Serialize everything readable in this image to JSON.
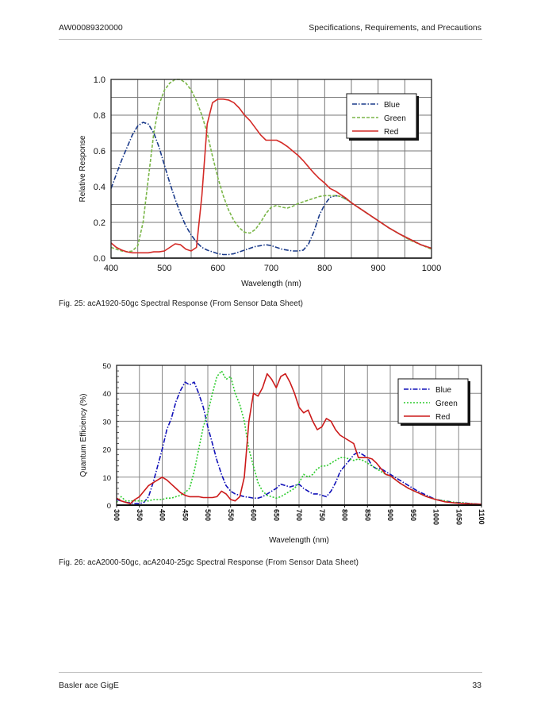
{
  "header": {
    "doc_id": "AW00089320000",
    "section": "Specifications, Requirements, and Precautions"
  },
  "footer": {
    "product": "Basler ace GigE",
    "page_number": "33"
  },
  "figures": [
    {
      "caption": "Fig. 25: acA1920-50gc Spectral Response (From Sensor Data Sheet)"
    },
    {
      "caption": "Fig. 26: acA2000-50gc, acA2040-25gc Spectral Response (From Sensor Data Sheet)"
    }
  ],
  "chart_data": [
    {
      "type": "line",
      "title": "",
      "xlabel": "Wavelength (nm)",
      "ylabel": "Relative Response",
      "xlim": [
        400,
        1000
      ],
      "ylim": [
        0,
        1.0
      ],
      "xticks": [
        400,
        500,
        600,
        700,
        800,
        900,
        1000
      ],
      "xtick_labels": [
        "400",
        "500",
        "600",
        "700",
        "800",
        "900",
        "1000"
      ],
      "yticks": [
        0,
        0.2,
        0.4,
        0.6,
        0.8,
        1.0
      ],
      "ytick_labels": [
        "0.0",
        "0.2",
        "0.4",
        "0.6",
        "0.8",
        "1.0"
      ],
      "grid": true,
      "legend": "top-right",
      "series": [
        {
          "name": "Blue",
          "color": "#1a3a8a",
          "dash": "dashdot",
          "x": [
            400,
            410,
            420,
            430,
            440,
            450,
            460,
            470,
            480,
            490,
            500,
            510,
            520,
            530,
            540,
            550,
            560,
            570,
            580,
            590,
            600,
            610,
            620,
            630,
            640,
            650,
            660,
            670,
            680,
            690,
            700,
            710,
            720,
            730,
            740,
            750,
            760,
            770,
            780,
            790,
            800,
            810,
            820,
            830,
            840,
            850,
            860,
            870,
            880,
            890,
            900,
            920,
            940,
            960,
            980,
            1000
          ],
          "y": [
            0.39,
            0.47,
            0.55,
            0.62,
            0.69,
            0.74,
            0.76,
            0.75,
            0.7,
            0.62,
            0.52,
            0.42,
            0.33,
            0.25,
            0.18,
            0.13,
            0.09,
            0.06,
            0.045,
            0.035,
            0.025,
            0.02,
            0.02,
            0.025,
            0.035,
            0.045,
            0.055,
            0.065,
            0.07,
            0.075,
            0.07,
            0.06,
            0.05,
            0.045,
            0.04,
            0.04,
            0.045,
            0.08,
            0.15,
            0.24,
            0.3,
            0.34,
            0.35,
            0.345,
            0.33,
            0.31,
            0.29,
            0.27,
            0.25,
            0.23,
            0.21,
            0.17,
            0.135,
            0.105,
            0.075,
            0.055
          ]
        },
        {
          "name": "Green",
          "color": "#7ab648",
          "dash": "dashed",
          "x": [
            400,
            410,
            420,
            430,
            440,
            450,
            460,
            470,
            480,
            490,
            500,
            510,
            520,
            530,
            540,
            550,
            560,
            570,
            580,
            590,
            600,
            610,
            620,
            630,
            640,
            650,
            660,
            670,
            680,
            690,
            700,
            710,
            720,
            730,
            740,
            750,
            760,
            770,
            780,
            790,
            800,
            810,
            820,
            830,
            840,
            850,
            860,
            870,
            880,
            890,
            900,
            920,
            940,
            960,
            980,
            1000
          ],
          "y": [
            0.06,
            0.05,
            0.04,
            0.035,
            0.04,
            0.07,
            0.2,
            0.45,
            0.7,
            0.86,
            0.94,
            0.98,
            1.0,
            1.0,
            0.98,
            0.94,
            0.88,
            0.8,
            0.7,
            0.57,
            0.45,
            0.35,
            0.27,
            0.21,
            0.17,
            0.145,
            0.14,
            0.16,
            0.2,
            0.25,
            0.285,
            0.295,
            0.285,
            0.28,
            0.29,
            0.305,
            0.315,
            0.325,
            0.335,
            0.345,
            0.35,
            0.35,
            0.35,
            0.345,
            0.33,
            0.31,
            0.29,
            0.27,
            0.25,
            0.23,
            0.21,
            0.17,
            0.135,
            0.1,
            0.075,
            0.05
          ]
        },
        {
          "name": "Red",
          "color": "#d42a26",
          "dash": "solid",
          "x": [
            400,
            410,
            420,
            430,
            440,
            450,
            460,
            470,
            480,
            490,
            500,
            510,
            520,
            530,
            540,
            550,
            560,
            570,
            580,
            590,
            600,
            610,
            620,
            630,
            640,
            650,
            660,
            670,
            680,
            690,
            700,
            710,
            720,
            730,
            740,
            750,
            760,
            770,
            780,
            790,
            800,
            810,
            820,
            830,
            840,
            850,
            860,
            870,
            880,
            890,
            900,
            920,
            940,
            960,
            980,
            1000
          ],
          "y": [
            0.085,
            0.06,
            0.045,
            0.035,
            0.03,
            0.03,
            0.03,
            0.03,
            0.035,
            0.035,
            0.04,
            0.06,
            0.08,
            0.075,
            0.05,
            0.04,
            0.06,
            0.35,
            0.75,
            0.87,
            0.89,
            0.89,
            0.885,
            0.87,
            0.84,
            0.8,
            0.77,
            0.73,
            0.69,
            0.66,
            0.66,
            0.66,
            0.645,
            0.625,
            0.6,
            0.575,
            0.545,
            0.51,
            0.475,
            0.445,
            0.42,
            0.39,
            0.375,
            0.355,
            0.335,
            0.31,
            0.29,
            0.27,
            0.25,
            0.23,
            0.21,
            0.17,
            0.135,
            0.105,
            0.075,
            0.055
          ]
        }
      ]
    },
    {
      "type": "line",
      "title": "",
      "xlabel": "Wavelength (nm)",
      "ylabel": "Quantum Efficiency (%)",
      "xlim": [
        300,
        1100
      ],
      "ylim": [
        0,
        50
      ],
      "xticks": [
        300,
        350,
        400,
        450,
        500,
        550,
        600,
        650,
        700,
        750,
        800,
        850,
        900,
        950,
        1000,
        1050,
        1100
      ],
      "xtick_labels": [
        "300",
        "350",
        "400",
        "450",
        "500",
        "550",
        "600",
        "650",
        "700",
        "750",
        "800",
        "850",
        "900",
        "950",
        "1000",
        "1050",
        "1100"
      ],
      "yticks": [
        0,
        10,
        20,
        30,
        40,
        50
      ],
      "ytick_labels": [
        "0",
        "10",
        "20",
        "30",
        "40",
        "50"
      ],
      "grid": true,
      "legend": "top-right",
      "series": [
        {
          "name": "Blue",
          "color": "#1010b8",
          "dash": "dashdot",
          "x": [
            300,
            310,
            320,
            330,
            340,
            350,
            360,
            370,
            380,
            390,
            400,
            410,
            420,
            430,
            440,
            450,
            460,
            470,
            480,
            490,
            500,
            510,
            520,
            530,
            540,
            550,
            560,
            570,
            580,
            590,
            600,
            610,
            620,
            630,
            640,
            650,
            660,
            670,
            680,
            690,
            700,
            710,
            720,
            730,
            740,
            750,
            760,
            770,
            780,
            790,
            800,
            810,
            820,
            830,
            840,
            850,
            860,
            870,
            880,
            890,
            900,
            920,
            940,
            960,
            980,
            1000,
            1020,
            1040,
            1060,
            1080,
            1100
          ],
          "y": [
            2,
            1.5,
            1,
            0.8,
            0.6,
            0.5,
            1,
            3,
            8,
            14,
            20,
            27,
            31,
            37,
            41,
            44,
            43,
            44,
            40,
            35,
            28,
            22,
            16,
            11,
            7,
            5,
            4,
            3.5,
            3,
            2.8,
            2.5,
            2.5,
            3,
            4,
            5,
            6,
            7.5,
            7,
            6.5,
            7,
            7.5,
            6,
            5,
            4,
            4,
            3.5,
            3,
            5,
            8,
            12,
            14,
            16,
            18,
            19,
            18,
            17,
            14,
            13,
            13,
            12,
            11,
            9,
            7,
            5,
            3.5,
            2,
            1.5,
            1,
            0.8,
            0.5,
            0.3
          ]
        },
        {
          "name": "Green",
          "color": "#2ecc2e",
          "dash": "dotted",
          "x": [
            300,
            310,
            320,
            330,
            340,
            350,
            360,
            370,
            380,
            390,
            400,
            410,
            420,
            430,
            440,
            450,
            460,
            470,
            480,
            490,
            500,
            510,
            520,
            530,
            540,
            550,
            560,
            570,
            580,
            590,
            600,
            610,
            620,
            630,
            640,
            650,
            660,
            670,
            680,
            690,
            700,
            710,
            720,
            730,
            740,
            750,
            760,
            770,
            780,
            790,
            800,
            810,
            820,
            830,
            840,
            850,
            860,
            870,
            880,
            890,
            900,
            920,
            940,
            960,
            980,
            1000,
            1020,
            1040,
            1060,
            1080,
            1100
          ],
          "y": [
            1,
            3,
            1.5,
            1.5,
            1.5,
            1.5,
            1.5,
            1.5,
            2,
            2,
            2,
            2.5,
            2.5,
            3,
            3.5,
            4.5,
            6,
            12,
            20,
            28,
            33,
            40,
            46,
            48,
            45,
            46,
            40,
            36,
            30,
            20,
            14,
            8,
            5,
            3.5,
            3,
            2.5,
            3,
            4,
            5,
            6,
            8,
            11,
            10,
            11,
            13,
            14,
            14,
            15,
            16,
            17,
            17,
            16.5,
            16,
            16.5,
            16,
            15,
            14,
            13,
            12,
            11,
            10.5,
            8,
            6,
            4.5,
            3,
            2,
            1.5,
            1,
            0.8,
            0.5,
            0.3
          ]
        },
        {
          "name": "Red",
          "color": "#cc1a1a",
          "dash": "solid",
          "x": [
            300,
            310,
            320,
            330,
            340,
            350,
            360,
            370,
            380,
            390,
            400,
            410,
            420,
            430,
            440,
            450,
            460,
            470,
            480,
            490,
            500,
            510,
            520,
            530,
            540,
            550,
            560,
            570,
            580,
            590,
            600,
            610,
            620,
            630,
            640,
            650,
            660,
            670,
            680,
            690,
            700,
            710,
            720,
            730,
            740,
            750,
            760,
            770,
            780,
            790,
            800,
            810,
            820,
            830,
            840,
            850,
            860,
            870,
            880,
            890,
            900,
            920,
            940,
            960,
            980,
            1000,
            1020,
            1040,
            1060,
            1080,
            1100
          ],
          "y": [
            2.5,
            1.5,
            1,
            0.5,
            2,
            3,
            5,
            7,
            8,
            9,
            10,
            9,
            7.5,
            6,
            4.5,
            3.5,
            3,
            3,
            3,
            2.7,
            2.7,
            2.7,
            3,
            5,
            4,
            2,
            1.5,
            3,
            10,
            30,
            40,
            39,
            42,
            47,
            45,
            42,
            46,
            47,
            44,
            40,
            35,
            33,
            34,
            30,
            27,
            28,
            31,
            30,
            27,
            25,
            24,
            23,
            22,
            17,
            17,
            17,
            16.5,
            15,
            13,
            11,
            10.5,
            8,
            6,
            4.5,
            3,
            2,
            1.2,
            0.8,
            0.6,
            0.4,
            0.3
          ]
        }
      ]
    }
  ]
}
